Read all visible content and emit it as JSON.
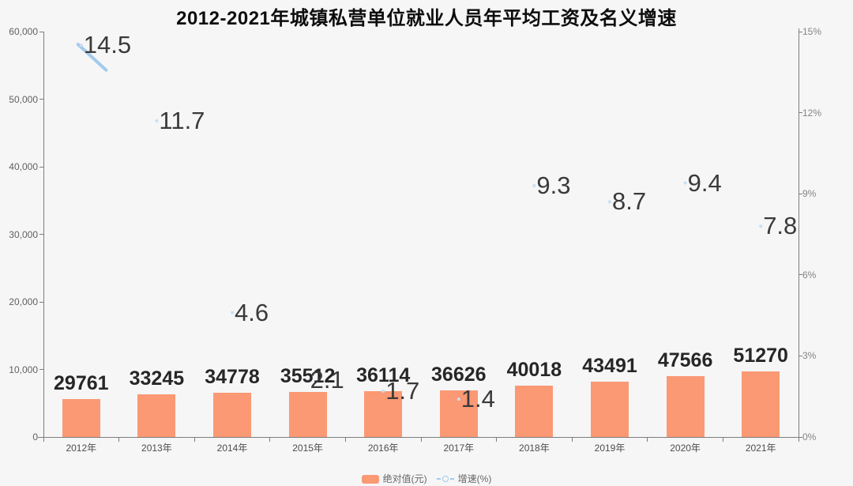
{
  "title": "2012-2021年城镇私营单位就业人员年平均工资及名义增速",
  "colors": {
    "bar": "#fa9974",
    "line": "#a2caec",
    "point_dot": "#c9def2",
    "background": "#f6f6f6",
    "axis_line": "#7d7d7d",
    "bar_label_text": "#262626",
    "growth_label_text": "#3a3a3a",
    "left_axis_text": "#616161",
    "right_axis_text": "#848484",
    "x_axis_text": "#4d4d4d",
    "title_text": "#0d0d0d",
    "legend_text": "#666666"
  },
  "legend": {
    "bar_label": "绝对值(元)",
    "line_label": "增速(%)"
  },
  "chart_data": {
    "type": "bar",
    "title": "2012-2021年城镇私营单位就业人员年平均工资及名义增速",
    "categories": [
      "2012年",
      "2013年",
      "2014年",
      "2015年",
      "2016年",
      "2017年",
      "2018年",
      "2019年",
      "2020年",
      "2021年"
    ],
    "series": [
      {
        "name": "绝对值(元)",
        "type": "bar",
        "axis": "left",
        "values": [
          29761,
          33245,
          34778,
          35512,
          36114,
          36626,
          40018,
          43491,
          47566,
          51270
        ]
      },
      {
        "name": "增速(%)",
        "type": "line",
        "axis": "right",
        "values": [
          14.5,
          11.7,
          4.6,
          2.1,
          1.7,
          1.4,
          9.3,
          8.7,
          9.4,
          7.8
        ]
      }
    ],
    "left_axis": {
      "min": 0,
      "max": 60000,
      "tick_labels": [
        "60,000",
        "50,000",
        "40,000",
        "30,000",
        "20,000",
        "10,000",
        "0"
      ]
    },
    "right_axis": {
      "min": 0,
      "max": 15,
      "tick_labels": [
        "15%",
        "12%",
        "9%",
        "6%",
        "3%",
        "0%"
      ]
    },
    "grid": false,
    "legend_position": "bottom",
    "bar_render_max": 318000,
    "line_render_note": "only a short light-blue segment of the growth line is drawn, leaving the 2012 data point toward 2013; data points elsewhere are tiny faint dots with large numeric labels"
  }
}
